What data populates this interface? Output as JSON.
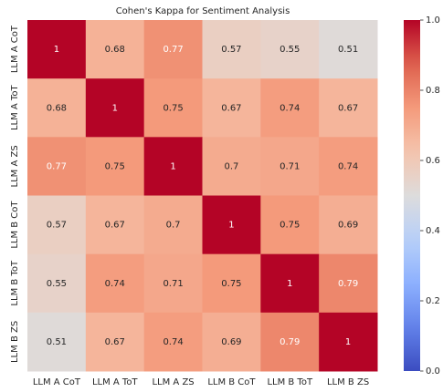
{
  "chart_data": {
    "type": "heatmap",
    "title": "Cohen's Kappa for Sentiment Analysis",
    "x_categories": [
      "LLM A CoT",
      "LLM A ToT",
      "LLM A ZS",
      "LLM B CoT",
      "LLM B ToT",
      "LLM B ZS"
    ],
    "y_categories": [
      "LLM A CoT",
      "LLM A ToT",
      "LLM A ZS",
      "LLM B CoT",
      "LLM B ToT",
      "LLM B ZS"
    ],
    "values": [
      [
        1,
        0.68,
        0.77,
        0.57,
        0.55,
        0.51
      ],
      [
        0.68,
        1,
        0.75,
        0.67,
        0.74,
        0.67
      ],
      [
        0.77,
        0.75,
        1,
        0.7,
        0.71,
        0.74
      ],
      [
        0.57,
        0.67,
        0.7,
        1,
        0.75,
        0.69
      ],
      [
        0.55,
        0.74,
        0.71,
        0.75,
        1,
        0.79
      ],
      [
        0.51,
        0.67,
        0.74,
        0.69,
        0.79,
        1
      ]
    ],
    "colormap": "coolwarm",
    "clim": [
      0,
      1
    ],
    "cticks": [
      {
        "value": 0,
        "label": "0.0"
      },
      0.2,
      0.4,
      0.6,
      0.8,
      {
        "value": 1,
        "label": "1.0"
      }
    ]
  }
}
